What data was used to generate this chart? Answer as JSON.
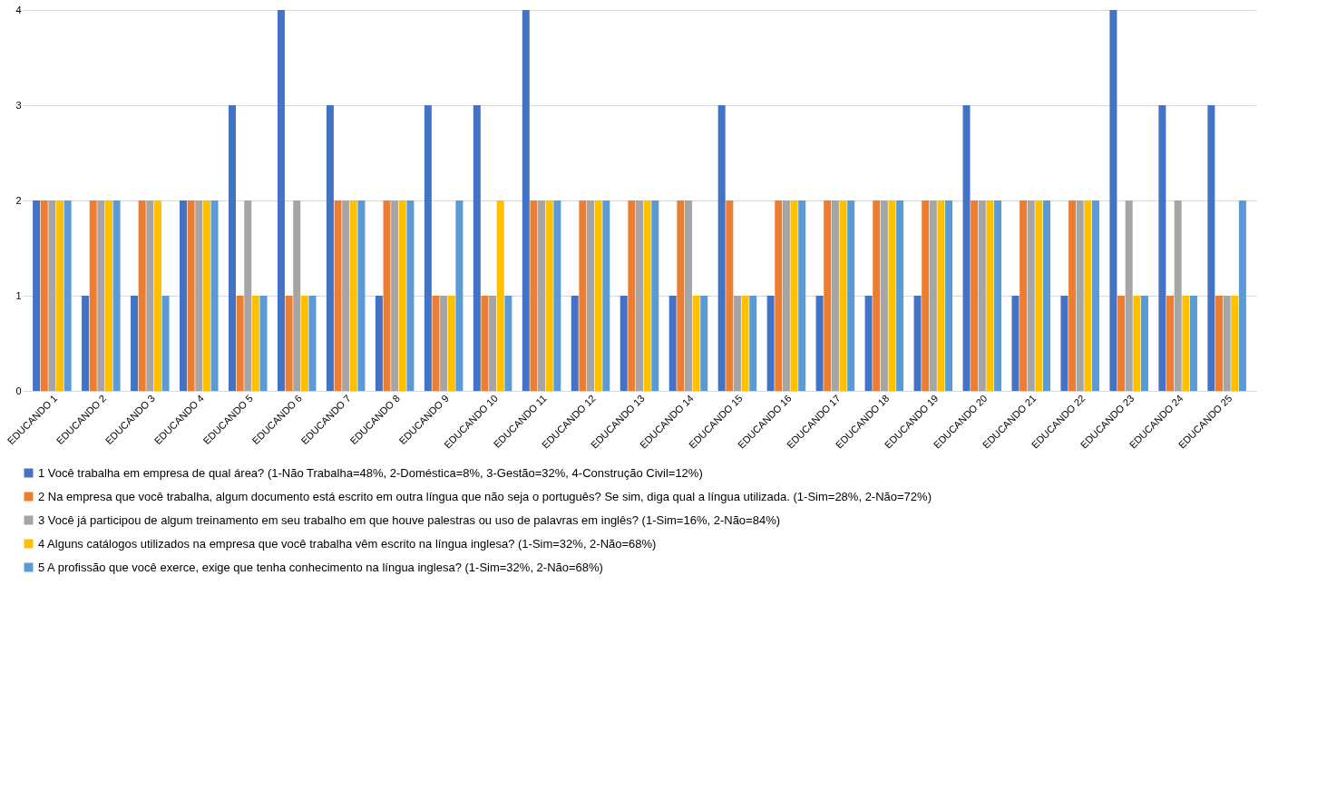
{
  "chart_data": {
    "type": "bar",
    "categories": [
      "EDUCANDO 1",
      "EDUCANDO 2",
      "EDUCANDO 3",
      "EDUCANDO 4",
      "EDUCANDO 5",
      "EDUCANDO 6",
      "EDUCANDO 7",
      "EDUCANDO 8",
      "EDUCANDO 9",
      "EDUCANDO 10",
      "EDUCANDO 11",
      "EDUCANDO 12",
      "EDUCANDO 13",
      "EDUCANDO 14",
      "EDUCANDO 15",
      "EDUCANDO 16",
      "EDUCANDO 17",
      "EDUCANDO 18",
      "EDUCANDO 19",
      "EDUCANDO 20",
      "EDUCANDO 21",
      "EDUCANDO 22",
      "EDUCANDO 23",
      "EDUCANDO 24",
      "EDUCANDO 25"
    ],
    "series": [
      {
        "name": "1 Você trabalha em empresa de qual área? (1-Não Trabalha=48%, 2-Doméstica=8%, 3-Gestão=32%, 4-Construção Civil=12%)",
        "color": "#4472c4",
        "values": [
          2,
          1,
          1,
          2,
          3,
          4,
          3,
          1,
          3,
          3,
          4,
          1,
          1,
          1,
          3,
          1,
          1,
          1,
          1,
          3,
          1,
          1,
          4,
          3,
          3
        ]
      },
      {
        "name": "2 Na empresa que você trabalha, algum documento está escrito em outra língua que não seja o português? Se sim, diga qual a língua utilizada. (1-Sim=28%, 2-Não=72%)",
        "color": "#ed7d31",
        "values": [
          2,
          2,
          2,
          2,
          1,
          1,
          2,
          2,
          1,
          1,
          2,
          2,
          2,
          2,
          2,
          2,
          2,
          2,
          2,
          2,
          2,
          2,
          1,
          1,
          1
        ]
      },
      {
        "name": "3 Você já participou de algum treinamento em seu trabalho em que houve palestras ou uso de palavras em inglês?  (1-Sim=16%, 2-Não=84%)",
        "color": "#a5a5a5",
        "values": [
          2,
          2,
          2,
          2,
          2,
          2,
          2,
          2,
          1,
          1,
          2,
          2,
          2,
          2,
          1,
          2,
          2,
          2,
          2,
          2,
          2,
          2,
          2,
          2,
          1
        ]
      },
      {
        "name": "4 Alguns catálogos utilizados na empresa que você trabalha vêm escrito na língua inglesa?  (1-Sim=32%, 2-Não=68%)",
        "color": "#ffc000",
        "values": [
          2,
          2,
          2,
          2,
          1,
          1,
          2,
          2,
          1,
          2,
          2,
          2,
          2,
          1,
          1,
          2,
          2,
          2,
          2,
          2,
          2,
          2,
          1,
          1,
          1
        ]
      },
      {
        "name": "5 A profissão que você exerce, exige que tenha conhecimento na língua inglesa?  (1-Sim=32%, 2-Não=68%)",
        "color": "#5b9bd5",
        "values": [
          2,
          2,
          1,
          2,
          1,
          1,
          2,
          2,
          2,
          1,
          2,
          2,
          2,
          1,
          1,
          2,
          2,
          2,
          2,
          2,
          2,
          2,
          1,
          1,
          2
        ]
      }
    ],
    "ylim": [
      0,
      4
    ],
    "yticks": [
      0,
      1,
      2,
      3,
      4
    ],
    "grid": "y",
    "legend": "bottom"
  }
}
